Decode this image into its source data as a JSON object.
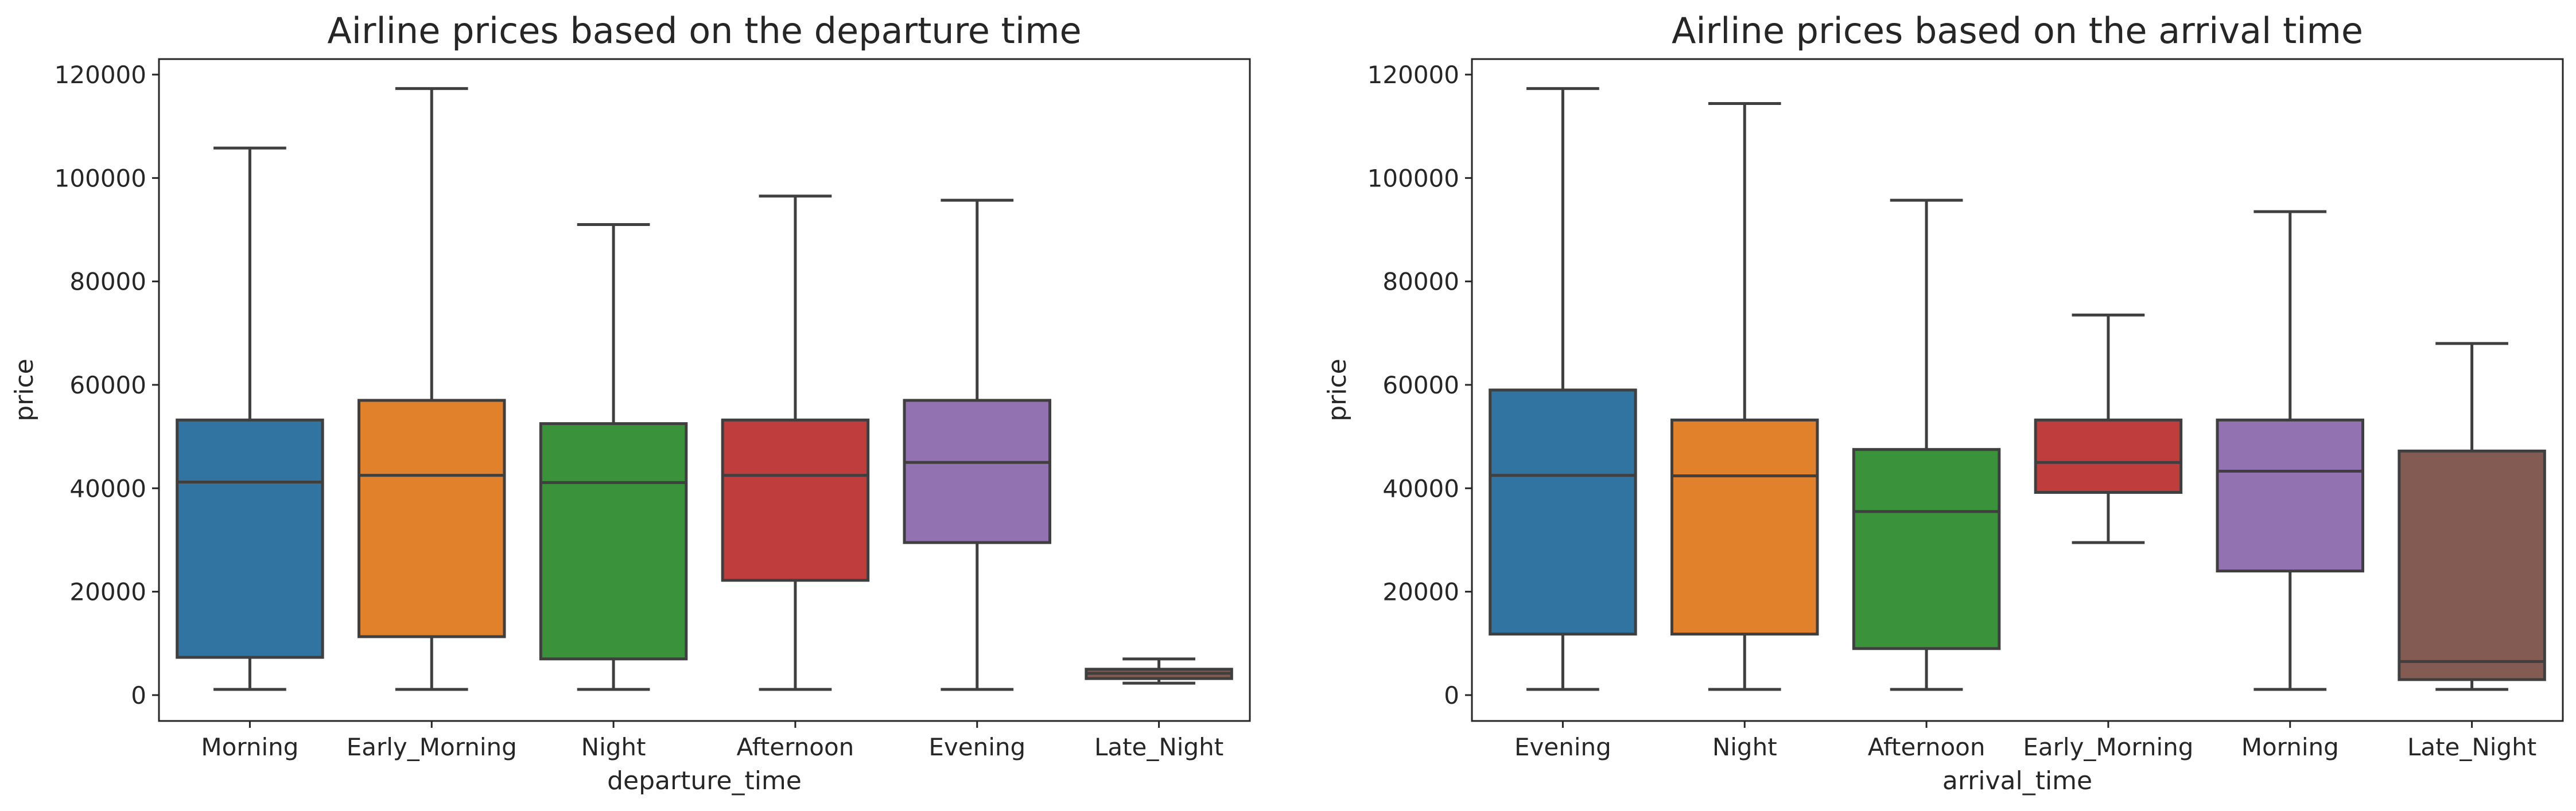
{
  "chart_data": [
    {
      "type": "box",
      "title": "Airline prices based on the departure time",
      "xlabel": "departure_time",
      "ylabel": "price",
      "ylim": [
        -5000,
        123000
      ],
      "yticks": [
        0,
        20000,
        40000,
        60000,
        80000,
        100000,
        120000
      ],
      "categories": [
        "Morning",
        "Early_Morning",
        "Night",
        "Afternoon",
        "Evening",
        "Late_Night"
      ],
      "boxes": [
        {
          "whislo": 1100,
          "q1": 7300,
          "med": 41200,
          "q3": 53200,
          "whishi": 105800,
          "color": "#3274a1"
        },
        {
          "whislo": 1100,
          "q1": 11300,
          "med": 42500,
          "q3": 57000,
          "whishi": 117300,
          "color": "#e1812c"
        },
        {
          "whislo": 1100,
          "q1": 7000,
          "med": 41100,
          "q3": 52500,
          "whishi": 91000,
          "color": "#3a923a"
        },
        {
          "whislo": 1100,
          "q1": 22200,
          "med": 42500,
          "q3": 53200,
          "whishi": 96500,
          "color": "#c03d3e"
        },
        {
          "whislo": 1100,
          "q1": 29500,
          "med": 45000,
          "q3": 57000,
          "whishi": 95700,
          "color": "#9372b2"
        },
        {
          "whislo": 2300,
          "q1": 3200,
          "med": 4200,
          "q3": 5000,
          "whishi": 7000,
          "color": "#845b53"
        }
      ]
    },
    {
      "type": "box",
      "title": "Airline prices based on the arrival time",
      "xlabel": "arrival_time",
      "ylabel": "price",
      "ylim": [
        -5000,
        123000
      ],
      "yticks": [
        0,
        20000,
        40000,
        60000,
        80000,
        100000,
        120000
      ],
      "categories": [
        "Evening",
        "Night",
        "Afternoon",
        "Early_Morning",
        "Morning",
        "Late_Night"
      ],
      "boxes": [
        {
          "whislo": 1100,
          "q1": 11800,
          "med": 42500,
          "q3": 59000,
          "whishi": 117300,
          "color": "#3274a1"
        },
        {
          "whislo": 1100,
          "q1": 11800,
          "med": 42400,
          "q3": 53200,
          "whishi": 114400,
          "color": "#e1812c"
        },
        {
          "whislo": 1100,
          "q1": 9000,
          "med": 35500,
          "q3": 47500,
          "whishi": 95700,
          "color": "#3a923a"
        },
        {
          "whislo": 29500,
          "q1": 39200,
          "med": 45000,
          "q3": 53200,
          "whishi": 73500,
          "color": "#c03d3e"
        },
        {
          "whislo": 1100,
          "q1": 24000,
          "med": 43300,
          "q3": 53200,
          "whishi": 93500,
          "color": "#9372b2"
        },
        {
          "whislo": 1100,
          "q1": 3000,
          "med": 6500,
          "q3": 47200,
          "whishi": 68000,
          "color": "#845b53"
        }
      ]
    }
  ]
}
